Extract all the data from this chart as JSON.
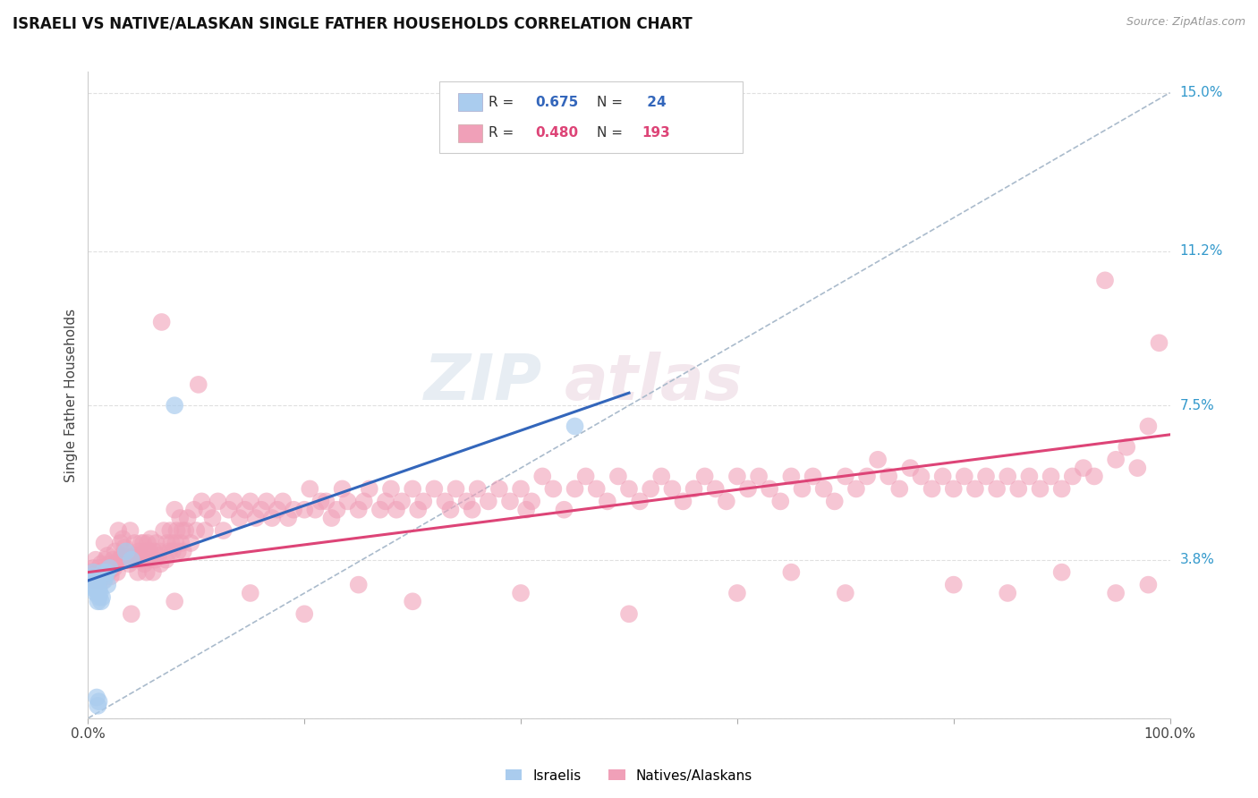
{
  "title": "ISRAELI VS NATIVE/ALASKAN SINGLE FATHER HOUSEHOLDS CORRELATION CHART",
  "source": "Source: ZipAtlas.com",
  "ylabel": "Single Father Households",
  "bg_color": "#ffffff",
  "grid_color": "#e0e0e0",
  "israeli_color": "#aaccee",
  "native_color": "#f0a0b8",
  "israeli_line_color": "#3366bb",
  "native_line_color": "#dd4477",
  "diagonal_color": "#aabbcc",
  "right_label_color": "#3399cc",
  "ytick_vals": [
    0.0,
    3.8,
    7.5,
    11.2,
    15.0
  ],
  "ytick_labels": [
    "",
    "3.8%",
    "7.5%",
    "11.2%",
    "15.0%"
  ],
  "xlim": [
    0,
    100
  ],
  "ylim": [
    0,
    15.5
  ],
  "israeli_points": [
    [
      0.2,
      3.3
    ],
    [
      0.3,
      3.2
    ],
    [
      0.4,
      3.4
    ],
    [
      0.5,
      3.2
    ],
    [
      0.5,
      3.5
    ],
    [
      0.6,
      3.1
    ],
    [
      0.6,
      3.3
    ],
    [
      0.7,
      3.0
    ],
    [
      0.7,
      3.2
    ],
    [
      0.8,
      3.1
    ],
    [
      0.8,
      3.3
    ],
    [
      0.9,
      3.0
    ],
    [
      0.9,
      2.8
    ],
    [
      1.0,
      2.9
    ],
    [
      1.0,
      3.1
    ],
    [
      1.1,
      3.0
    ],
    [
      1.2,
      2.8
    ],
    [
      1.3,
      2.9
    ],
    [
      1.4,
      3.5
    ],
    [
      1.5,
      3.3
    ],
    [
      1.6,
      3.4
    ],
    [
      1.7,
      3.5
    ],
    [
      1.8,
      3.2
    ],
    [
      2.0,
      3.6
    ],
    [
      3.5,
      4.0
    ],
    [
      4.0,
      3.8
    ],
    [
      8.0,
      7.5
    ],
    [
      45.0,
      7.0
    ],
    [
      0.8,
      0.5
    ],
    [
      0.9,
      0.3
    ],
    [
      1.0,
      0.4
    ]
  ],
  "native_points": [
    [
      0.3,
      3.5
    ],
    [
      0.4,
      3.4
    ],
    [
      0.5,
      3.6
    ],
    [
      0.6,
      3.3
    ],
    [
      0.7,
      3.8
    ],
    [
      0.8,
      3.5
    ],
    [
      0.9,
      3.4
    ],
    [
      1.0,
      3.6
    ],
    [
      1.1,
      3.3
    ],
    [
      1.2,
      3.7
    ],
    [
      1.3,
      3.5
    ],
    [
      1.4,
      3.3
    ],
    [
      1.5,
      4.2
    ],
    [
      1.6,
      3.8
    ],
    [
      1.7,
      3.5
    ],
    [
      1.8,
      3.9
    ],
    [
      1.9,
      3.5
    ],
    [
      2.0,
      3.7
    ],
    [
      2.1,
      3.4
    ],
    [
      2.2,
      3.6
    ],
    [
      2.3,
      3.8
    ],
    [
      2.4,
      3.6
    ],
    [
      2.5,
      4.0
    ],
    [
      2.6,
      3.7
    ],
    [
      2.7,
      3.5
    ],
    [
      2.8,
      4.5
    ],
    [
      2.9,
      3.8
    ],
    [
      3.0,
      4.2
    ],
    [
      3.1,
      3.9
    ],
    [
      3.2,
      4.3
    ],
    [
      3.3,
      3.9
    ],
    [
      3.4,
      4.1
    ],
    [
      3.5,
      3.8
    ],
    [
      3.6,
      4.0
    ],
    [
      3.7,
      3.8
    ],
    [
      3.8,
      3.7
    ],
    [
      3.9,
      4.5
    ],
    [
      4.0,
      3.8
    ],
    [
      4.2,
      3.9
    ],
    [
      4.3,
      4.2
    ],
    [
      4.5,
      3.9
    ],
    [
      4.6,
      3.5
    ],
    [
      4.7,
      4.0
    ],
    [
      4.8,
      3.8
    ],
    [
      4.9,
      4.2
    ],
    [
      5.0,
      3.8
    ],
    [
      5.1,
      4.2
    ],
    [
      5.2,
      3.7
    ],
    [
      5.3,
      4.0
    ],
    [
      5.4,
      3.5
    ],
    [
      5.5,
      4.2
    ],
    [
      5.6,
      3.8
    ],
    [
      5.7,
      4.0
    ],
    [
      5.8,
      4.3
    ],
    [
      6.0,
      3.5
    ],
    [
      6.1,
      4.0
    ],
    [
      6.2,
      3.8
    ],
    [
      6.3,
      4.2
    ],
    [
      6.5,
      3.9
    ],
    [
      6.6,
      4.0
    ],
    [
      6.7,
      3.7
    ],
    [
      6.8,
      9.5
    ],
    [
      7.0,
      4.5
    ],
    [
      7.2,
      3.8
    ],
    [
      7.3,
      4.2
    ],
    [
      7.5,
      4.0
    ],
    [
      7.6,
      4.5
    ],
    [
      7.7,
      4.2
    ],
    [
      7.8,
      4.0
    ],
    [
      8.0,
      5.0
    ],
    [
      8.1,
      4.2
    ],
    [
      8.2,
      4.5
    ],
    [
      8.3,
      4.0
    ],
    [
      8.5,
      4.8
    ],
    [
      8.6,
      4.2
    ],
    [
      8.7,
      4.5
    ],
    [
      8.8,
      4.0
    ],
    [
      9.0,
      4.5
    ],
    [
      9.2,
      4.8
    ],
    [
      9.5,
      4.2
    ],
    [
      9.8,
      5.0
    ],
    [
      10.0,
      4.5
    ],
    [
      10.2,
      8.0
    ],
    [
      10.5,
      5.2
    ],
    [
      10.8,
      4.5
    ],
    [
      11.0,
      5.0
    ],
    [
      11.5,
      4.8
    ],
    [
      12.0,
      5.2
    ],
    [
      12.5,
      4.5
    ],
    [
      13.0,
      5.0
    ],
    [
      13.5,
      5.2
    ],
    [
      14.0,
      4.8
    ],
    [
      14.5,
      5.0
    ],
    [
      15.0,
      5.2
    ],
    [
      15.5,
      4.8
    ],
    [
      16.0,
      5.0
    ],
    [
      16.5,
      5.2
    ],
    [
      17.0,
      4.8
    ],
    [
      17.5,
      5.0
    ],
    [
      18.0,
      5.2
    ],
    [
      18.5,
      4.8
    ],
    [
      19.0,
      5.0
    ],
    [
      20.0,
      5.0
    ],
    [
      20.5,
      5.5
    ],
    [
      21.0,
      5.0
    ],
    [
      21.5,
      5.2
    ],
    [
      22.0,
      5.2
    ],
    [
      22.5,
      4.8
    ],
    [
      23.0,
      5.0
    ],
    [
      23.5,
      5.5
    ],
    [
      24.0,
      5.2
    ],
    [
      25.0,
      5.0
    ],
    [
      25.5,
      5.2
    ],
    [
      26.0,
      5.5
    ],
    [
      27.0,
      5.0
    ],
    [
      27.5,
      5.2
    ],
    [
      28.0,
      5.5
    ],
    [
      28.5,
      5.0
    ],
    [
      29.0,
      5.2
    ],
    [
      30.0,
      5.5
    ],
    [
      30.5,
      5.0
    ],
    [
      31.0,
      5.2
    ],
    [
      32.0,
      5.5
    ],
    [
      33.0,
      5.2
    ],
    [
      33.5,
      5.0
    ],
    [
      34.0,
      5.5
    ],
    [
      35.0,
      5.2
    ],
    [
      35.5,
      5.0
    ],
    [
      36.0,
      5.5
    ],
    [
      37.0,
      5.2
    ],
    [
      38.0,
      5.5
    ],
    [
      39.0,
      5.2
    ],
    [
      40.0,
      5.5
    ],
    [
      40.5,
      5.0
    ],
    [
      41.0,
      5.2
    ],
    [
      42.0,
      5.8
    ],
    [
      43.0,
      5.5
    ],
    [
      44.0,
      5.0
    ],
    [
      45.0,
      5.5
    ],
    [
      46.0,
      5.8
    ],
    [
      47.0,
      5.5
    ],
    [
      48.0,
      5.2
    ],
    [
      49.0,
      5.8
    ],
    [
      50.0,
      5.5
    ],
    [
      51.0,
      5.2
    ],
    [
      52.0,
      5.5
    ],
    [
      53.0,
      5.8
    ],
    [
      54.0,
      5.5
    ],
    [
      55.0,
      5.2
    ],
    [
      56.0,
      5.5
    ],
    [
      57.0,
      5.8
    ],
    [
      58.0,
      5.5
    ],
    [
      59.0,
      5.2
    ],
    [
      60.0,
      5.8
    ],
    [
      61.0,
      5.5
    ],
    [
      62.0,
      5.8
    ],
    [
      63.0,
      5.5
    ],
    [
      64.0,
      5.2
    ],
    [
      65.0,
      5.8
    ],
    [
      66.0,
      5.5
    ],
    [
      67.0,
      5.8
    ],
    [
      68.0,
      5.5
    ],
    [
      69.0,
      5.2
    ],
    [
      70.0,
      5.8
    ],
    [
      71.0,
      5.5
    ],
    [
      72.0,
      5.8
    ],
    [
      73.0,
      6.2
    ],
    [
      74.0,
      5.8
    ],
    [
      75.0,
      5.5
    ],
    [
      76.0,
      6.0
    ],
    [
      77.0,
      5.8
    ],
    [
      78.0,
      5.5
    ],
    [
      79.0,
      5.8
    ],
    [
      80.0,
      5.5
    ],
    [
      81.0,
      5.8
    ],
    [
      82.0,
      5.5
    ],
    [
      83.0,
      5.8
    ],
    [
      84.0,
      5.5
    ],
    [
      85.0,
      5.8
    ],
    [
      86.0,
      5.5
    ],
    [
      87.0,
      5.8
    ],
    [
      88.0,
      5.5
    ],
    [
      89.0,
      5.8
    ],
    [
      90.0,
      5.5
    ],
    [
      91.0,
      5.8
    ],
    [
      92.0,
      6.0
    ],
    [
      93.0,
      5.8
    ],
    [
      94.0,
      10.5
    ],
    [
      95.0,
      6.2
    ],
    [
      96.0,
      6.5
    ],
    [
      97.0,
      6.0
    ],
    [
      98.0,
      7.0
    ],
    [
      99.0,
      9.0
    ],
    [
      4.0,
      2.5
    ],
    [
      8.0,
      2.8
    ],
    [
      15.0,
      3.0
    ],
    [
      20.0,
      2.5
    ],
    [
      25.0,
      3.2
    ],
    [
      30.0,
      2.8
    ],
    [
      40.0,
      3.0
    ],
    [
      50.0,
      2.5
    ],
    [
      60.0,
      3.0
    ],
    [
      65.0,
      3.5
    ],
    [
      70.0,
      3.0
    ],
    [
      80.0,
      3.2
    ],
    [
      85.0,
      3.0
    ],
    [
      90.0,
      3.5
    ],
    [
      95.0,
      3.0
    ],
    [
      98.0,
      3.2
    ]
  ],
  "israeli_trend": [
    0.0,
    50.0,
    3.3,
    7.8
  ],
  "native_trend": [
    0.0,
    100.0,
    3.5,
    6.8
  ]
}
